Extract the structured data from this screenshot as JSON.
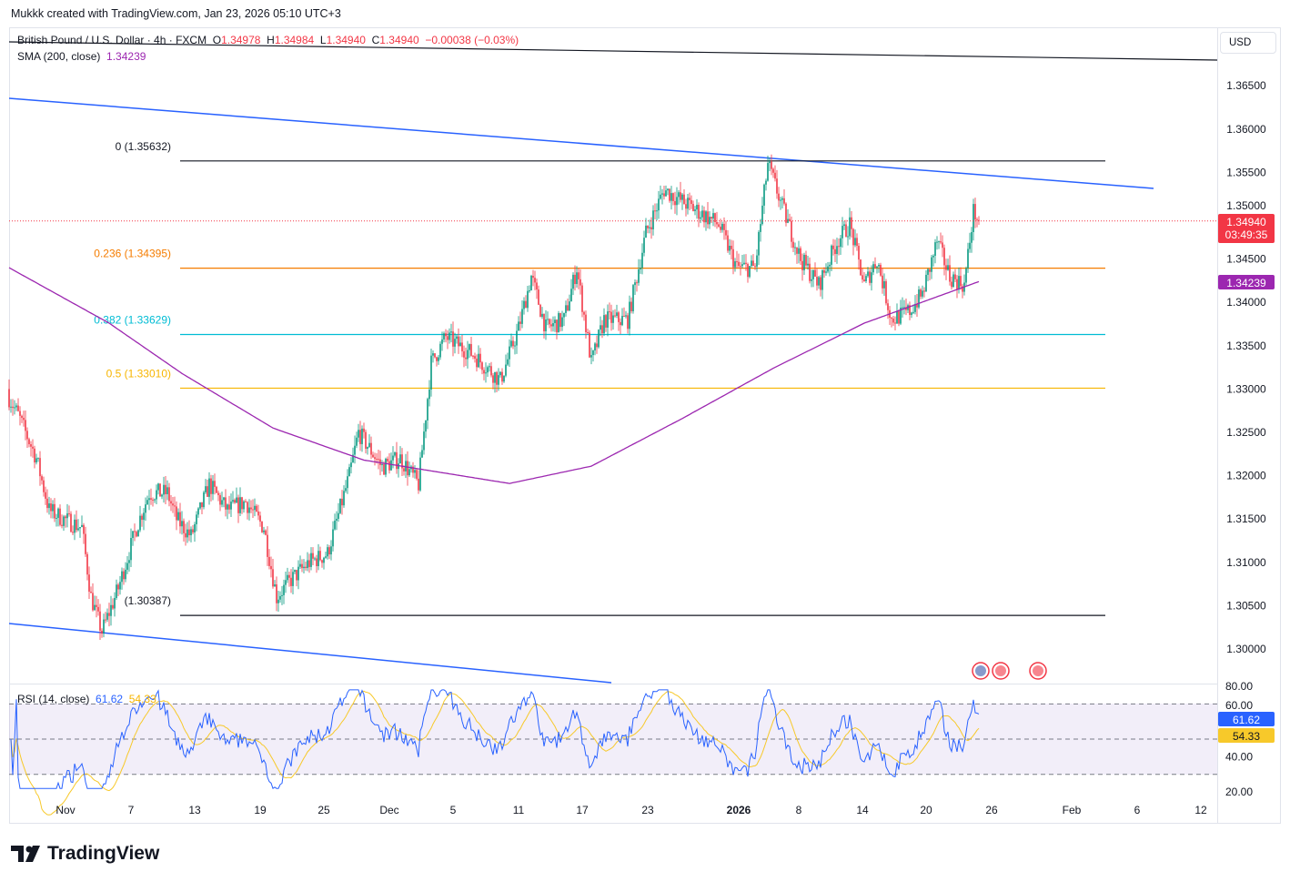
{
  "credit": "Mukkk created with TradingView.com, Jan 23, 2026 05:10 UTC+3",
  "legend": {
    "symbol": "British Pound / U.S. Dollar · 4h · FXCM",
    "o_label": "O",
    "o": "1.34978",
    "h_label": "H",
    "h": "1.34984",
    "l_label": "L",
    "l": "1.34940",
    "c_label": "C",
    "c": "1.34940",
    "change": "−0.00038 (−0.03%)",
    "sma_label": "SMA (200, close)",
    "sma_value": "1.34239",
    "rsi_label": "RSI (14, close)",
    "rsi_value": "61.62",
    "rsi_ma_value": "54.33"
  },
  "currency": "USD",
  "countdown": "03:49:35",
  "logo": "TradingView",
  "colors": {
    "up": "#089981",
    "down": "#f23645",
    "sma": "#9c27b0",
    "channel": "#2962ff",
    "rsi": "#2962ff",
    "rsi_ma": "#f7c92a"
  },
  "chart_data": {
    "type": "candlestick",
    "title": "British Pound / U.S. Dollar · 4h · FXCM",
    "ylim": [
      1.2961,
      1.3717
    ],
    "y_ticks": [
      "1.36500",
      "1.36000",
      "1.35500",
      "1.35000",
      "1.34500",
      "1.34000",
      "1.33500",
      "1.33000",
      "1.32500",
      "1.32000",
      "1.31500",
      "1.31000",
      "1.30500",
      "1.30000"
    ],
    "x_ticks": [
      {
        "label": "Nov",
        "bar": 31
      },
      {
        "label": "7",
        "bar": 67
      },
      {
        "label": "13",
        "bar": 102
      },
      {
        "label": "19",
        "bar": 138
      },
      {
        "label": "25",
        "bar": 173
      },
      {
        "label": "Dec",
        "bar": 209
      },
      {
        "label": "5",
        "bar": 244
      },
      {
        "label": "11",
        "bar": 280
      },
      {
        "label": "17",
        "bar": 315
      },
      {
        "label": "23",
        "bar": 351
      },
      {
        "label": "2026",
        "bar": 401
      },
      {
        "label": "8",
        "bar": 434
      },
      {
        "label": "14",
        "bar": 469
      },
      {
        "label": "20",
        "bar": 504
      },
      {
        "label": "26",
        "bar": 540
      },
      {
        "label": "Feb",
        "bar": 584
      },
      {
        "label": "6",
        "bar": 620
      },
      {
        "label": "12",
        "bar": 655
      }
    ],
    "close_path": [
      [
        0,
        1.329
      ],
      [
        5,
        1.327
      ],
      [
        15,
        1.322
      ],
      [
        22,
        1.316
      ],
      [
        30,
        1.315
      ],
      [
        40,
        1.314
      ],
      [
        45,
        1.306
      ],
      [
        51,
        1.302
      ],
      [
        60,
        1.307
      ],
      [
        70,
        1.314
      ],
      [
        77,
        1.318
      ],
      [
        87,
        1.318
      ],
      [
        92,
        1.315
      ],
      [
        100,
        1.313
      ],
      [
        110,
        1.319
      ],
      [
        120,
        1.316
      ],
      [
        130,
        1.317
      ],
      [
        140,
        1.314
      ],
      [
        147,
        1.306
      ],
      [
        155,
        1.308
      ],
      [
        165,
        1.31
      ],
      [
        175,
        1.311
      ],
      [
        187,
        1.32
      ],
      [
        192,
        1.325
      ],
      [
        205,
        1.321
      ],
      [
        215,
        1.322
      ],
      [
        225,
        1.319
      ],
      [
        232,
        1.333
      ],
      [
        240,
        1.336
      ],
      [
        255,
        1.334
      ],
      [
        270,
        1.331
      ],
      [
        280,
        1.337
      ],
      [
        287,
        1.343
      ],
      [
        295,
        1.337
      ],
      [
        305,
        1.338
      ],
      [
        312,
        1.344
      ],
      [
        320,
        1.333
      ],
      [
        327,
        1.338
      ],
      [
        340,
        1.338
      ],
      [
        350,
        1.348
      ],
      [
        360,
        1.353
      ],
      [
        375,
        1.351
      ],
      [
        390,
        1.349
      ],
      [
        400,
        1.344
      ],
      [
        410,
        1.344
      ],
      [
        417,
        1.356
      ],
      [
        425,
        1.351
      ],
      [
        435,
        1.345
      ],
      [
        445,
        1.342
      ],
      [
        455,
        1.347
      ],
      [
        462,
        1.349
      ],
      [
        470,
        1.342
      ],
      [
        477,
        1.345
      ],
      [
        485,
        1.338
      ],
      [
        495,
        1.339
      ],
      [
        502,
        1.341
      ],
      [
        510,
        1.347
      ],
      [
        517,
        1.343
      ],
      [
        525,
        1.342
      ],
      [
        530,
        1.3505
      ],
      [
        533,
        1.3494
      ]
    ],
    "sma_path": [
      [
        0,
        1.344
      ],
      [
        55,
        1.3376
      ],
      [
        95,
        1.3318
      ],
      [
        145,
        1.3255
      ],
      [
        195,
        1.3218
      ],
      [
        275,
        1.3191
      ],
      [
        320,
        1.3211
      ],
      [
        370,
        1.3266
      ],
      [
        420,
        1.3324
      ],
      [
        470,
        1.3376
      ],
      [
        533,
        1.3424
      ]
    ],
    "fib_levels": [
      {
        "label": "0 (1.35632)",
        "price": 1.35632,
        "color": "#131722"
      },
      {
        "label": "0.236 (1.34395)",
        "price": 1.34395,
        "color": "#f57c00"
      },
      {
        "label": "0.382 (1.33629)",
        "price": 1.33629,
        "color": "#00bcd4"
      },
      {
        "label": "0.5 (1.33010)",
        "price": 1.3301,
        "color": "#f7b500"
      },
      {
        "label": "(1.30387)",
        "price": 1.30387,
        "color": "#131722"
      }
    ],
    "last_price": "1.34940",
    "sma_last": "1.34239",
    "rsi": {
      "ylim": [
        10,
        85
      ],
      "ticks": [
        "80.00",
        "60.00",
        "40.00",
        "20.00"
      ],
      "upper": 70,
      "middle": 50,
      "lower": 30,
      "last": "61.62",
      "ma_last": "54.33"
    }
  }
}
